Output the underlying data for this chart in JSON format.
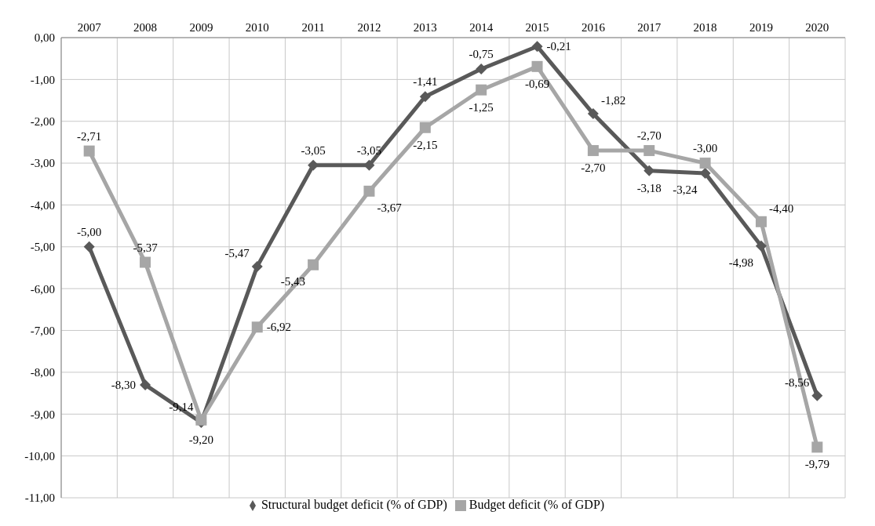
{
  "chart_data": {
    "type": "line",
    "categories": [
      "2007",
      "2008",
      "2009",
      "2010",
      "2011",
      "2012",
      "2013",
      "2014",
      "2015",
      "2016",
      "2017",
      "2018",
      "2019",
      "2020"
    ],
    "series": [
      {
        "name": "Structural budget deficit (% of GDP)",
        "color": "#595959",
        "marker": "diamond",
        "values": [
          -5.0,
          -8.3,
          -9.2,
          -5.47,
          -3.05,
          -3.05,
          -1.41,
          -0.75,
          -0.21,
          -1.82,
          -3.18,
          -3.24,
          -4.98,
          -8.56
        ],
        "value_labels": [
          "-5,00",
          "-8,30",
          "-9,20",
          "-5,47",
          "-3,05",
          "-3,05",
          "-1,41",
          "-0,75",
          "-0,21",
          "-1,82",
          "-3,18",
          "-3,24",
          "-4,98",
          "-8,56"
        ]
      },
      {
        "name": "Budget deficit (% of GDP)",
        "color": "#a6a6a6",
        "marker": "square",
        "values": [
          -2.71,
          -5.37,
          -9.14,
          -6.92,
          -5.43,
          -3.67,
          -2.15,
          -1.25,
          -0.69,
          -2.7,
          -2.7,
          -3.0,
          -4.4,
          -9.79
        ],
        "value_labels": [
          "-2,71",
          "-5,37",
          "-9,14",
          "-6,92",
          "-5,43",
          "-3,67",
          "-2,15",
          "-1,25",
          "-0,69",
          "-2,70",
          "-2,70",
          "-3,00",
          "-4,40",
          "-9,79"
        ]
      }
    ],
    "ylim": [
      -11,
      0
    ],
    "yticks": [
      {
        "value": 0,
        "label": "0,00"
      },
      {
        "value": -1,
        "label": "-1,00"
      },
      {
        "value": -2,
        "label": "-2,00"
      },
      {
        "value": -3,
        "label": "-3,00"
      },
      {
        "value": -4,
        "label": "-4,00"
      },
      {
        "value": -5,
        "label": "-5,00"
      },
      {
        "value": -6,
        "label": "-6,00"
      },
      {
        "value": -7,
        "label": "-7,00"
      },
      {
        "value": -8,
        "label": "-8,00"
      },
      {
        "value": -9,
        "label": "-9,00"
      },
      {
        "value": -10,
        "label": "-10,00"
      },
      {
        "value": -11,
        "label": "-11,00"
      }
    ],
    "grid": true,
    "legend": "bottom",
    "line_style": "solid"
  }
}
